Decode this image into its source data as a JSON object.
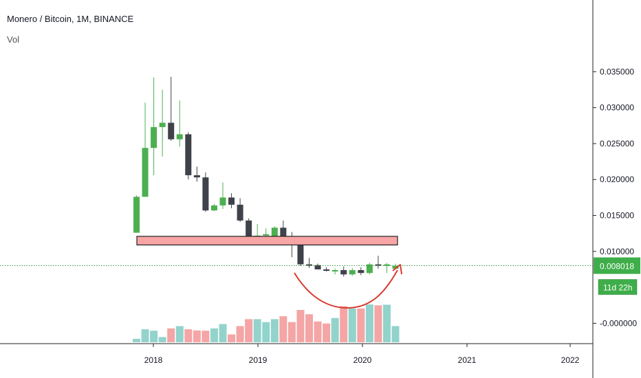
{
  "legend": {
    "title": "Monero / Bitcoin, 1M, BINANCE",
    "volume_label": "Vol"
  },
  "price_badge": {
    "value": "0.008018",
    "countdown": "11d 22h"
  },
  "colors": {
    "up": "#4caf50",
    "down": "#40424a",
    "vol_up": "#92d3cc",
    "vol_down": "#f4a5a5",
    "resistance_fill": "#f7a5a5",
    "arrow": "#d83a2e",
    "price_line": "#2e9c3c",
    "badge": "#3fae4a"
  },
  "chart_data": {
    "type": "candlestick",
    "title": "Monero / Bitcoin, 1M, BINANCE",
    "x_tick_labels": [
      "2018",
      "2019",
      "2020",
      "2021",
      "2022"
    ],
    "y_tick_labels": [
      "-0.000000",
      "0.010000",
      "0.015000",
      "0.020000",
      "0.025000",
      "0.030000",
      "0.035000"
    ],
    "ylim": [
      -0.0013,
      0.038
    ],
    "last_price": 0.008018,
    "resistance_zone": [
      0.0109,
      0.0121
    ],
    "candles": [
      {
        "date": "2017-11",
        "open": 0.0126,
        "high": 0.0178,
        "low": 0.0126,
        "close": 0.0176,
        "volume": 0.0012
      },
      {
        "date": "2017-12",
        "open": 0.0176,
        "high": 0.0307,
        "low": 0.0176,
        "close": 0.0244,
        "volume": 0.0045
      },
      {
        "date": "2018-01",
        "open": 0.0244,
        "high": 0.0342,
        "low": 0.0206,
        "close": 0.0273,
        "volume": 0.004
      },
      {
        "date": "2018-02",
        "open": 0.0273,
        "high": 0.0325,
        "low": 0.0232,
        "close": 0.0279,
        "volume": 0.0018
      },
      {
        "date": "2018-03",
        "open": 0.0279,
        "high": 0.0343,
        "low": 0.0254,
        "close": 0.0256,
        "volume": 0.0048
      },
      {
        "date": "2018-04",
        "open": 0.0256,
        "high": 0.031,
        "low": 0.0246,
        "close": 0.0263,
        "volume": 0.0056
      },
      {
        "date": "2018-05",
        "open": 0.0263,
        "high": 0.0266,
        "low": 0.02,
        "close": 0.0206,
        "volume": 0.0045
      },
      {
        "date": "2018-06",
        "open": 0.0206,
        "high": 0.0218,
        "low": 0.0197,
        "close": 0.0203,
        "volume": 0.0041
      },
      {
        "date": "2018-07",
        "open": 0.0203,
        "high": 0.021,
        "low": 0.0155,
        "close": 0.0157,
        "volume": 0.004
      },
      {
        "date": "2018-08",
        "open": 0.0157,
        "high": 0.0166,
        "low": 0.0156,
        "close": 0.0164,
        "volume": 0.0048
      },
      {
        "date": "2018-09",
        "open": 0.0164,
        "high": 0.0196,
        "low": 0.0159,
        "close": 0.0175,
        "volume": 0.0063
      },
      {
        "date": "2018-10",
        "open": 0.0175,
        "high": 0.0181,
        "low": 0.016,
        "close": 0.0165,
        "volume": 0.0027
      },
      {
        "date": "2018-11",
        "open": 0.0165,
        "high": 0.0174,
        "low": 0.0141,
        "close": 0.0143,
        "volume": 0.0056
      },
      {
        "date": "2018-12",
        "open": 0.0143,
        "high": 0.0146,
        "low": 0.0116,
        "close": 0.012,
        "volume": 0.008
      },
      {
        "date": "2019-01",
        "open": 0.012,
        "high": 0.0138,
        "low": 0.0118,
        "close": 0.0122,
        "volume": 0.008
      },
      {
        "date": "2019-02",
        "open": 0.0122,
        "high": 0.0132,
        "low": 0.012,
        "close": 0.0124,
        "volume": 0.007
      },
      {
        "date": "2019-03",
        "open": 0.012,
        "high": 0.0135,
        "low": 0.0117,
        "close": 0.0133,
        "volume": 0.008
      },
      {
        "date": "2019-04",
        "open": 0.0133,
        "high": 0.0143,
        "low": 0.0115,
        "close": 0.0119,
        "volume": 0.009
      },
      {
        "date": "2019-05",
        "open": 0.0119,
        "high": 0.0127,
        "low": 0.0092,
        "close": 0.0109,
        "volume": 0.007
      },
      {
        "date": "2019-06",
        "open": 0.0109,
        "high": 0.0112,
        "low": 0.008,
        "close": 0.0082,
        "volume": 0.0112
      },
      {
        "date": "2019-07",
        "open": 0.0082,
        "high": 0.0091,
        "low": 0.0077,
        "close": 0.0081,
        "volume": 0.0097
      },
      {
        "date": "2019-08",
        "open": 0.0081,
        "high": 0.0083,
        "low": 0.0075,
        "close": 0.0075,
        "volume": 0.0072
      },
      {
        "date": "2019-09",
        "open": 0.0075,
        "high": 0.0078,
        "low": 0.0072,
        "close": 0.0073,
        "volume": 0.0065
      },
      {
        "date": "2019-10",
        "open": 0.0073,
        "high": 0.0076,
        "low": 0.0068,
        "close": 0.0074,
        "volume": 0.0084
      },
      {
        "date": "2019-11",
        "open": 0.0074,
        "high": 0.0079,
        "low": 0.0065,
        "close": 0.0068,
        "volume": 0.0125
      },
      {
        "date": "2019-12",
        "open": 0.0068,
        "high": 0.0077,
        "low": 0.0066,
        "close": 0.0074,
        "volume": 0.0117
      },
      {
        "date": "2020-01",
        "open": 0.0074,
        "high": 0.0078,
        "low": 0.0067,
        "close": 0.007,
        "volume": 0.0117
      },
      {
        "date": "2020-02",
        "open": 0.007,
        "high": 0.0084,
        "low": 0.0068,
        "close": 0.0082,
        "volume": 0.0131
      },
      {
        "date": "2020-03",
        "open": 0.0082,
        "high": 0.0094,
        "low": 0.0076,
        "close": 0.008,
        "volume": 0.0128
      },
      {
        "date": "2020-04",
        "open": 0.008,
        "high": 0.0084,
        "low": 0.007,
        "close": 0.0082,
        "volume": 0.013
      },
      {
        "date": "2020-05",
        "open": 0.0076,
        "high": 0.0083,
        "low": 0.0075,
        "close": 0.008,
        "volume": 0.0056
      }
    ]
  }
}
